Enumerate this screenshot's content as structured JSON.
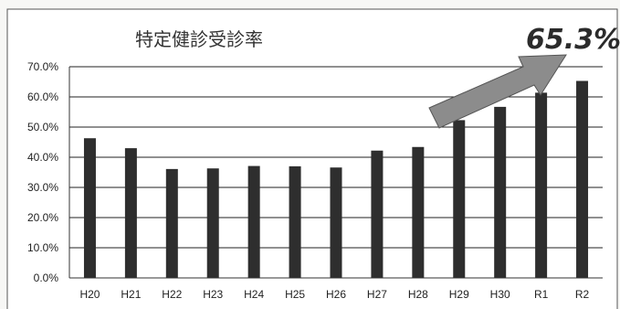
{
  "chart_data": {
    "type": "bar",
    "title": "特定健診受診率",
    "categories": [
      "H20",
      "H21",
      "H22",
      "H23",
      "H24",
      "H25",
      "H26",
      "H27",
      "H28",
      "H29",
      "H30",
      "R1",
      "R2"
    ],
    "values": [
      46.3,
      43.0,
      36.1,
      36.3,
      37.1,
      37.0,
      36.6,
      42.2,
      43.4,
      52.3,
      56.7,
      61.4,
      65.3
    ],
    "ylim": [
      0,
      70
    ],
    "yticks": [
      "0.0%",
      "10.0%",
      "20.0%",
      "30.0%",
      "40.0%",
      "50.0%",
      "60.0%",
      "70.0%"
    ],
    "grid": true,
    "annotation": "65.3%",
    "bar_color": "#2e2e2e",
    "arrow_color": "#8c8c8c"
  }
}
